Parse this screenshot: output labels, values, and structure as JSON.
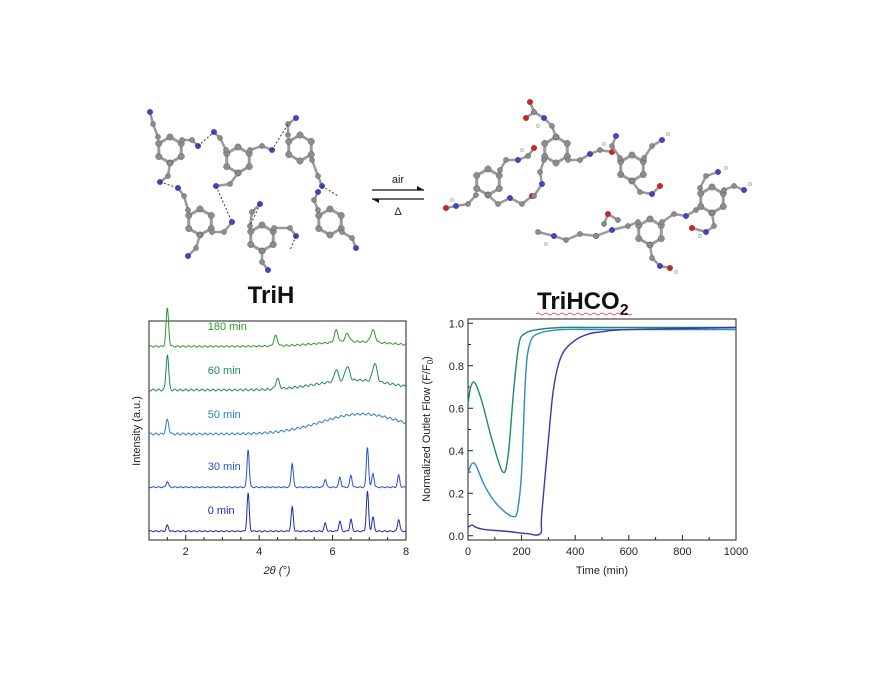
{
  "top": {
    "left_label": "TriH",
    "right_label": "TriHCO",
    "right_label_sub": "2",
    "arrow_forward_label": "air",
    "arrow_back_label": "Δ"
  },
  "chart_data": [
    {
      "type": "line",
      "panel": "pxrd",
      "xlabel": "2θ (°)",
      "ylabel": "Intensity (a.u.)",
      "xlim": [
        1,
        8
      ],
      "xticks": [
        2,
        4,
        6,
        8
      ],
      "peaks": [
        1.5,
        3.7,
        4.9,
        5.8,
        6.2,
        6.5,
        6.95,
        7.1,
        7.8
      ],
      "series": [
        {
          "name": "180 min",
          "color": "#2a9a2a",
          "offset": 4.6,
          "pattern": "amorph_ordered"
        },
        {
          "name": "60 min",
          "color": "#1f8a5a",
          "offset": 3.5,
          "pattern": "amorph_mixed"
        },
        {
          "name": "50 min",
          "color": "#2b7fc4",
          "offset": 2.4,
          "pattern": "amorph"
        },
        {
          "name": "30 min",
          "color": "#2452d8",
          "offset": 1.1,
          "pattern": "crystal"
        },
        {
          "name": "0 min",
          "color": "#1a2bb5",
          "offset": 0.0,
          "pattern": "crystal"
        }
      ]
    },
    {
      "type": "line",
      "panel": "breakthrough",
      "xlabel": "Time (min)",
      "ylabel": "Normalized Outlet Flow (F/F",
      "ylabel_sub": "0",
      "ylabel_end": ")",
      "xlim": [
        0,
        1000
      ],
      "ylim": [
        -0.02,
        1.02
      ],
      "xticks": [
        0,
        200,
        400,
        600,
        800,
        1000
      ],
      "yticks": [
        0.0,
        0.2,
        0.4,
        0.6,
        0.8,
        1.0
      ],
      "series": [
        {
          "color": "#1f8a6a",
          "x": [
            0,
            10,
            25,
            50,
            90,
            130,
            150,
            170,
            190,
            210,
            260,
            350,
            500,
            1000
          ],
          "y": [
            0.62,
            0.7,
            0.72,
            0.64,
            0.45,
            0.3,
            0.38,
            0.68,
            0.9,
            0.95,
            0.97,
            0.98,
            0.98,
            0.98
          ]
        },
        {
          "color": "#2d89c8",
          "x": [
            0,
            15,
            30,
            60,
            100,
            140,
            170,
            185,
            200,
            215,
            230,
            260,
            350,
            500,
            1000
          ],
          "y": [
            0.3,
            0.34,
            0.33,
            0.24,
            0.16,
            0.11,
            0.09,
            0.12,
            0.3,
            0.75,
            0.9,
            0.95,
            0.97,
            0.97,
            0.97
          ]
        },
        {
          "color": "#3a3aa8",
          "x": [
            0,
            15,
            30,
            60,
            150,
            220,
            270,
            275,
            300,
            320,
            350,
            400,
            450,
            500,
            600,
            1000
          ],
          "y": [
            0.04,
            0.05,
            0.04,
            0.03,
            0.02,
            0.01,
            0.01,
            0.1,
            0.45,
            0.7,
            0.85,
            0.92,
            0.95,
            0.96,
            0.97,
            0.98
          ]
        }
      ]
    }
  ]
}
